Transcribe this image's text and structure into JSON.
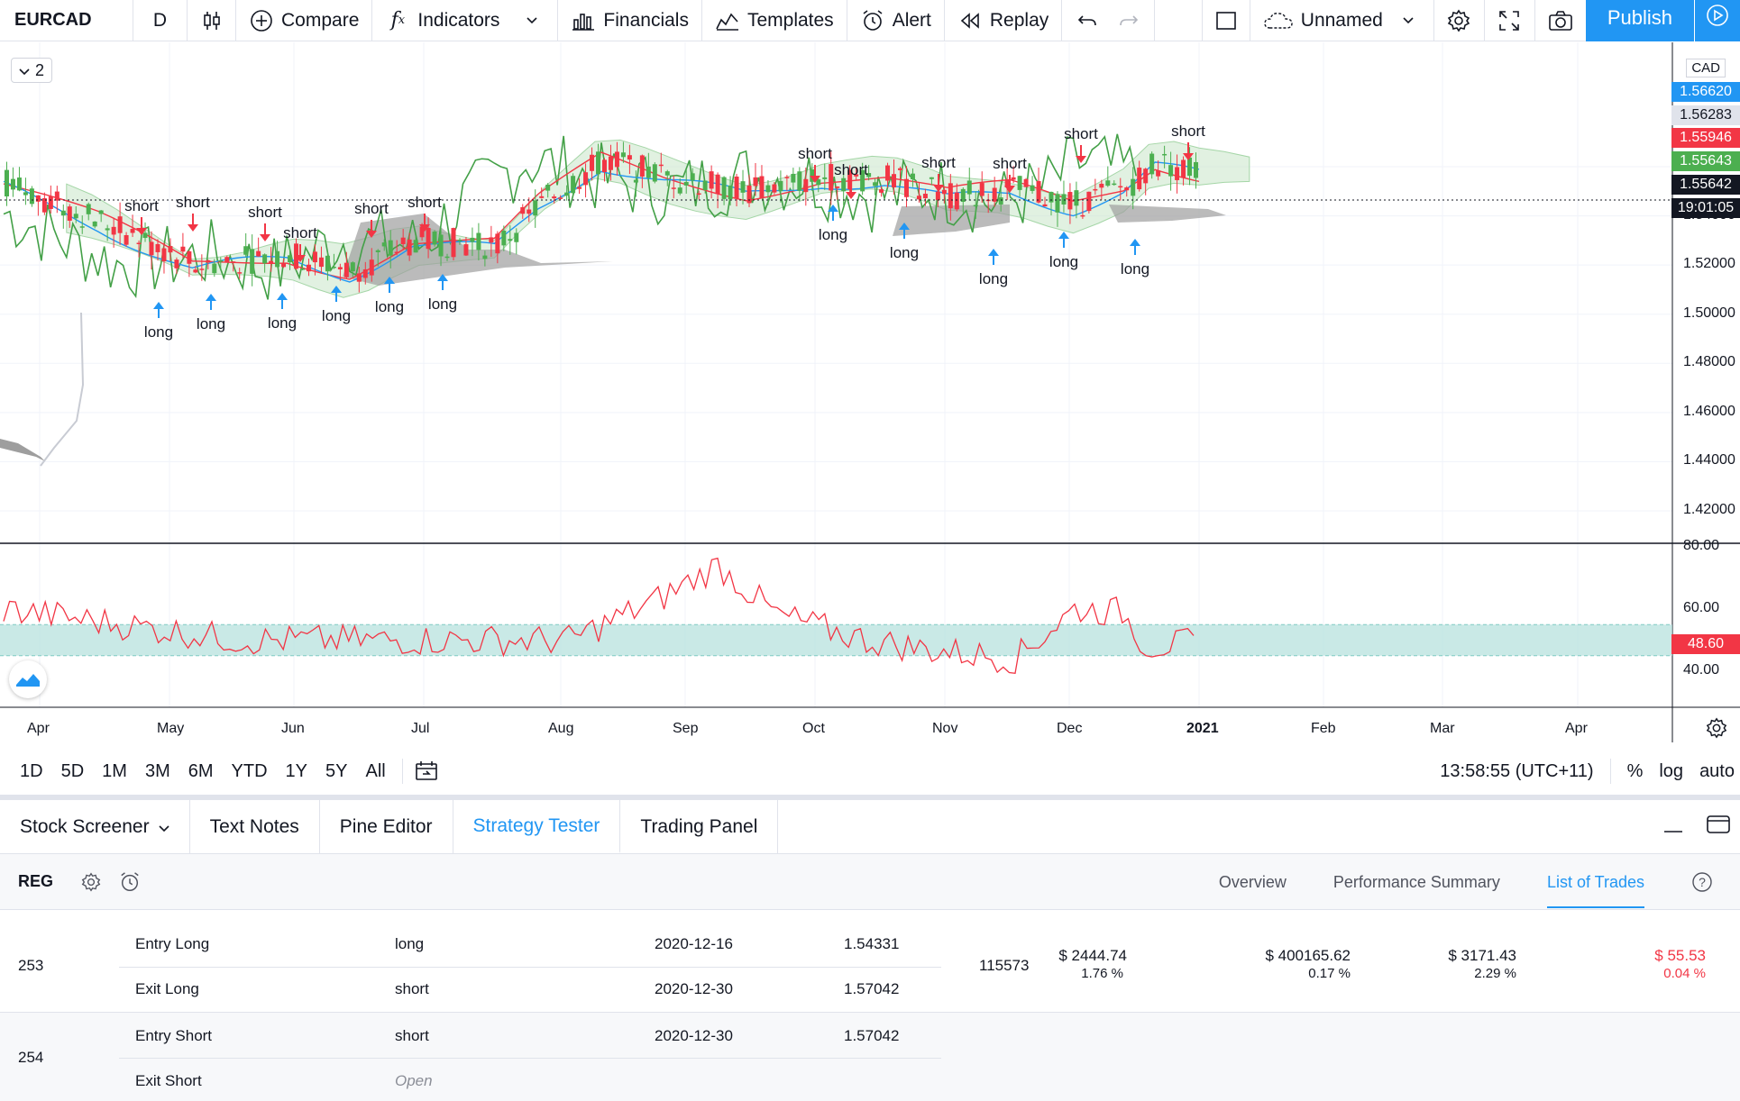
{
  "toolbar": {
    "symbol": "EURCAD",
    "interval": "D",
    "compare": "Compare",
    "indicators": "Indicators",
    "financials": "Financials",
    "templates": "Templates",
    "alert": "Alert",
    "replay": "Replay",
    "layout_name": "Unnamed",
    "publish": "Publish"
  },
  "chart": {
    "legend_count": "2",
    "currency": "CAD",
    "price_ticks": [
      "1.54000",
      "1.52000",
      "1.50000",
      "1.48000",
      "1.46000",
      "1.44000",
      "1.42000"
    ],
    "price_labels": [
      {
        "text": "1.56620",
        "bg": "#2196f3",
        "fg": "#ffffff"
      },
      {
        "text": "1.56283",
        "bg": "#e0e3eb",
        "fg": "#131722"
      },
      {
        "text": "1.55946",
        "bg": "#f23645",
        "fg": "#ffffff"
      },
      {
        "text": "1.55643",
        "bg": "#4caf50",
        "fg": "#ffffff"
      },
      {
        "text": "1.55642",
        "bg": "#131722",
        "fg": "#ffffff"
      },
      {
        "text": "19:01:05",
        "bg": "#131722",
        "fg": "#ffffff"
      }
    ],
    "rsi_ticks": [
      "80.00",
      "60.00",
      "40.00"
    ],
    "rsi_label": {
      "text": "48.60",
      "bg": "#f23645",
      "fg": "#ffffff"
    },
    "months": [
      "Apr",
      "May",
      "Jun",
      "Jul",
      "Aug",
      "Sep",
      "Oct",
      "Nov",
      "Dec",
      "2021",
      "Feb",
      "Mar",
      "Apr"
    ],
    "trade_labels": {
      "short": "short",
      "long": "long"
    },
    "colors": {
      "up": "#26a69a",
      "down": "#ef5350",
      "ema_blue": "#2196f3",
      "ema_red": "#f23645",
      "green_line": "#43a047",
      "cloud_green": "#c8e6c9",
      "cloud_grey": "#9e9e9e",
      "rsi": "#f23645",
      "rsi_band": "#b2dfdb"
    }
  },
  "range": {
    "items": [
      "1D",
      "5D",
      "1M",
      "3M",
      "6M",
      "YTD",
      "1Y",
      "5Y",
      "All"
    ],
    "clock": "13:58:55 (UTC+11)",
    "percent": "%",
    "log": "log",
    "auto": "auto"
  },
  "panel": {
    "tabs": [
      "Stock Screener",
      "Text Notes",
      "Pine Editor",
      "Strategy Tester",
      "Trading Panel"
    ],
    "active_tab": "Strategy Tester",
    "strategy": "REG",
    "subtabs": [
      "Overview",
      "Performance Summary",
      "List of Trades"
    ],
    "active_subtab": "List of Trades"
  },
  "trades": [
    {
      "num": "253",
      "rows": [
        {
          "type": "Entry Long",
          "signal": "long",
          "date": "2020-12-16",
          "price": "1.54331"
        },
        {
          "type": "Exit Long",
          "signal": "short",
          "date": "2020-12-30",
          "price": "1.57042"
        }
      ],
      "contracts": "115573",
      "profit": "$ 2444.74",
      "profit_pct": "1.76 %",
      "cum_profit": "$ 400165.62",
      "cum_profit_pct": "0.17 %",
      "runup": "$ 3171.43",
      "runup_pct": "2.29 %",
      "drawdown": "$ 55.53",
      "drawdown_pct": "0.04 %"
    },
    {
      "num": "254",
      "rows": [
        {
          "type": "Entry Short",
          "signal": "short",
          "date": "2020-12-30",
          "price": "1.57042"
        },
        {
          "type": "Exit Short",
          "signal": "Open",
          "date": "",
          "price": ""
        }
      ]
    }
  ]
}
